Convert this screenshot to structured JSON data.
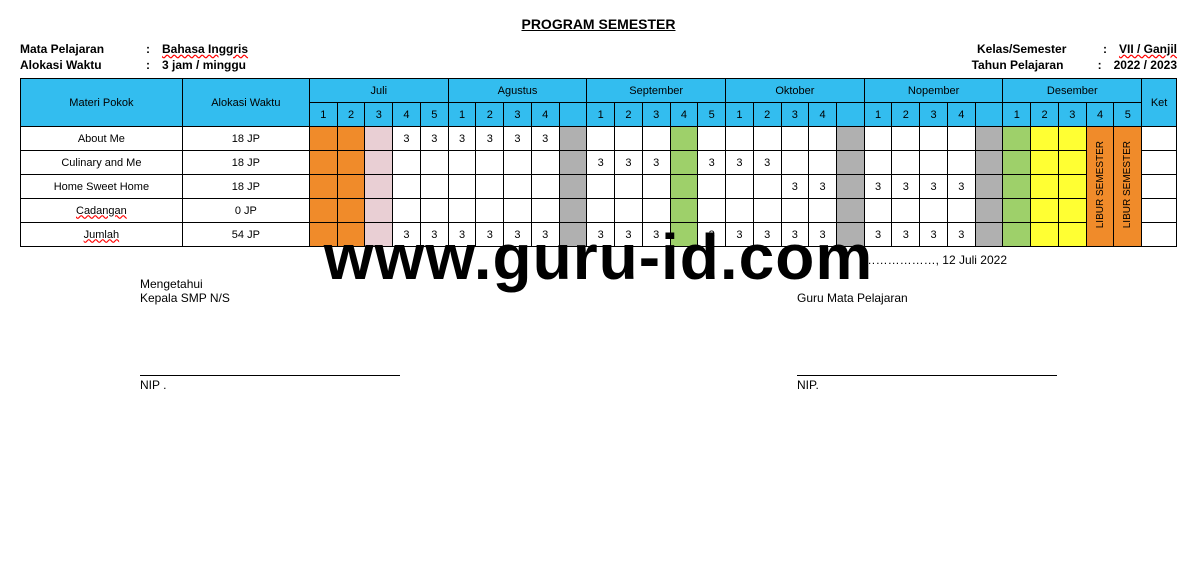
{
  "title": "PROGRAM SEMESTER",
  "header": {
    "left": [
      {
        "label": "Mata Pelajaran",
        "value": "Bahasa Inggris",
        "wavy": true
      },
      {
        "label": "Alokasi Waktu",
        "value": "3 jam / minggu",
        "wavy": false
      }
    ],
    "right": [
      {
        "label": "Kelas/Semester",
        "value": "VII / Ganjil",
        "wavy": true
      },
      {
        "label": "Tahun Pelajaran",
        "value": "2022 / 2023",
        "wavy": false
      }
    ]
  },
  "colors": {
    "header_bg": "#33bdef",
    "orange": "#f08b2a",
    "pink": "#e9cfd4",
    "gray": "#b0b0b0",
    "green": "#9ed06a",
    "yellow": "#ffff33",
    "white": "#ffffff"
  },
  "columns": {
    "materi": "Materi Pokok",
    "alokasi": "Alokasi Waktu",
    "ket": "Ket"
  },
  "months": [
    {
      "name": "Juli",
      "weeks": [
        1,
        2,
        3,
        4,
        5
      ]
    },
    {
      "name": "Agustus",
      "weeks": [
        1,
        2,
        3,
        4,
        null
      ]
    },
    {
      "name": "September",
      "weeks": [
        1,
        2,
        3,
        4,
        5
      ]
    },
    {
      "name": "Oktober",
      "weeks": [
        1,
        2,
        3,
        4,
        null
      ]
    },
    {
      "name": "Nopember",
      "weeks": [
        1,
        2,
        3,
        4,
        null
      ]
    },
    {
      "name": "Desember",
      "weeks": [
        1,
        2,
        3,
        4,
        5
      ]
    }
  ],
  "week_colors": [
    "orange",
    "orange",
    "pink",
    "white",
    "white",
    "white",
    "white",
    "white",
    "white",
    "gray",
    "white",
    "white",
    "white",
    "green",
    "white",
    "white",
    "white",
    "white",
    "white",
    "gray",
    "white",
    "white",
    "white",
    "white",
    "gray",
    "green",
    "yellow",
    "yellow",
    "orange",
    "orange"
  ],
  "libur_labels": [
    "LIBUR SEMESTER",
    "LIBUR SEMESTER"
  ],
  "rows": [
    {
      "materi": "About Me",
      "wavy": false,
      "alokasi": "18 JP",
      "cells": [
        "",
        "",
        "",
        "3",
        "3",
        "3",
        "3",
        "3",
        "3",
        "",
        "",
        "",
        "",
        "",
        "",
        "",
        "",
        "",
        "",
        "",
        "",
        "",
        "",
        "",
        "",
        "",
        "",
        "",
        "",
        "",
        ""
      ]
    },
    {
      "materi": "Culinary and Me",
      "wavy": false,
      "alokasi": "18 JP",
      "cells": [
        "",
        "",
        "",
        "",
        "",
        "",
        "",
        "",
        "",
        "",
        "3",
        "3",
        "3",
        "",
        "3",
        "3",
        "3",
        "",
        "",
        "",
        "",
        "",
        "",
        "",
        "",
        "",
        "",
        "",
        "",
        "",
        ""
      ]
    },
    {
      "materi": "Home Sweet Home",
      "wavy": false,
      "alokasi": "18 JP",
      "cells": [
        "",
        "",
        "",
        "",
        "",
        "",
        "",
        "",
        "",
        "",
        "",
        "",
        "",
        "",
        "",
        "",
        "",
        "3",
        "3",
        "",
        "3",
        "3",
        "3",
        "3",
        "",
        "",
        "",
        "",
        "",
        "",
        ""
      ]
    },
    {
      "materi": "Cadangan",
      "wavy": true,
      "alokasi": "0 JP",
      "cells": [
        "",
        "",
        "",
        "",
        "",
        "",
        "",
        "",
        "",
        "",
        "",
        "",
        "",
        "",
        "",
        "",
        "",
        "",
        "",
        "",
        "",
        "",
        "",
        "",
        "",
        "",
        "",
        "",
        "",
        "",
        ""
      ]
    },
    {
      "materi": "Jumlah",
      "wavy": true,
      "alokasi": "54 JP",
      "cells": [
        "",
        "",
        "",
        "3",
        "3",
        "3",
        "3",
        "3",
        "3",
        "",
        "3",
        "3",
        "3",
        "",
        "3",
        "3",
        "3",
        "3",
        "3",
        "",
        "3",
        "3",
        "3",
        "3",
        "",
        "",
        "",
        "",
        "",
        "",
        ""
      ]
    }
  ],
  "footer": {
    "date": "………………, 12 Juli 2022",
    "left_title1": "Mengetahui",
    "left_title2": "Kepala SMP N/S",
    "right_title": "Guru Mata Pelajaran",
    "nip_left": "NIP .",
    "nip_right": "NIP."
  },
  "watermark": "www.guru-id.com"
}
